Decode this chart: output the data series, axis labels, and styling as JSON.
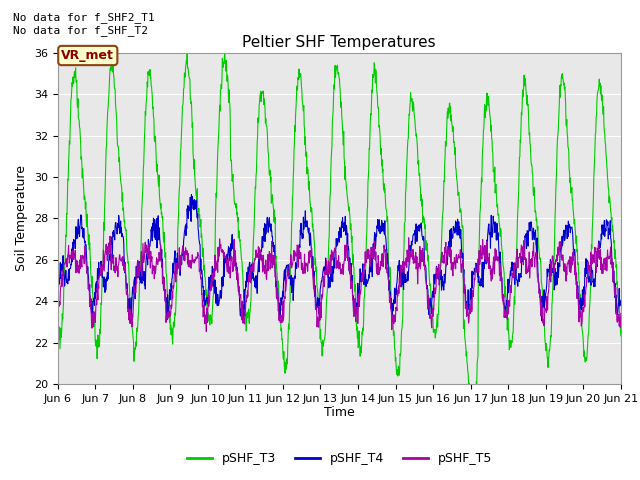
{
  "title": "Peltier SHF Temperatures",
  "ylabel": "Soil Temperature",
  "xlabel": "Time",
  "xlim_days": [
    6,
    21
  ],
  "ylim": [
    20,
    36
  ],
  "yticks": [
    20,
    22,
    24,
    26,
    28,
    30,
    32,
    34,
    36
  ],
  "xtick_labels": [
    "Jun 6",
    "Jun 7",
    "Jun 8",
    "Jun 9",
    "Jun 10",
    "Jun 11",
    "Jun 12",
    "Jun 13",
    "Jun 14",
    "Jun 15",
    "Jun 16",
    "Jun 17",
    "Jun 18",
    "Jun 19",
    "Jun 20",
    "Jun 21"
  ],
  "annotation1": "No data for f_SHF2_T1",
  "annotation2": "No data for f_SHF_T2",
  "vr_label": "VR_met",
  "line_colors": [
    "#00cc00",
    "#0000cc",
    "#aa00aa"
  ],
  "line_labels": [
    "pSHF_T3",
    "pSHF_T4",
    "pSHF_T5"
  ],
  "background_color": "#e8e8e8",
  "fig_bg": "#ffffff",
  "grid_color": "#ffffff",
  "title_fontsize": 11,
  "axis_fontsize": 9,
  "tick_fontsize": 8,
  "legend_fontsize": 9
}
